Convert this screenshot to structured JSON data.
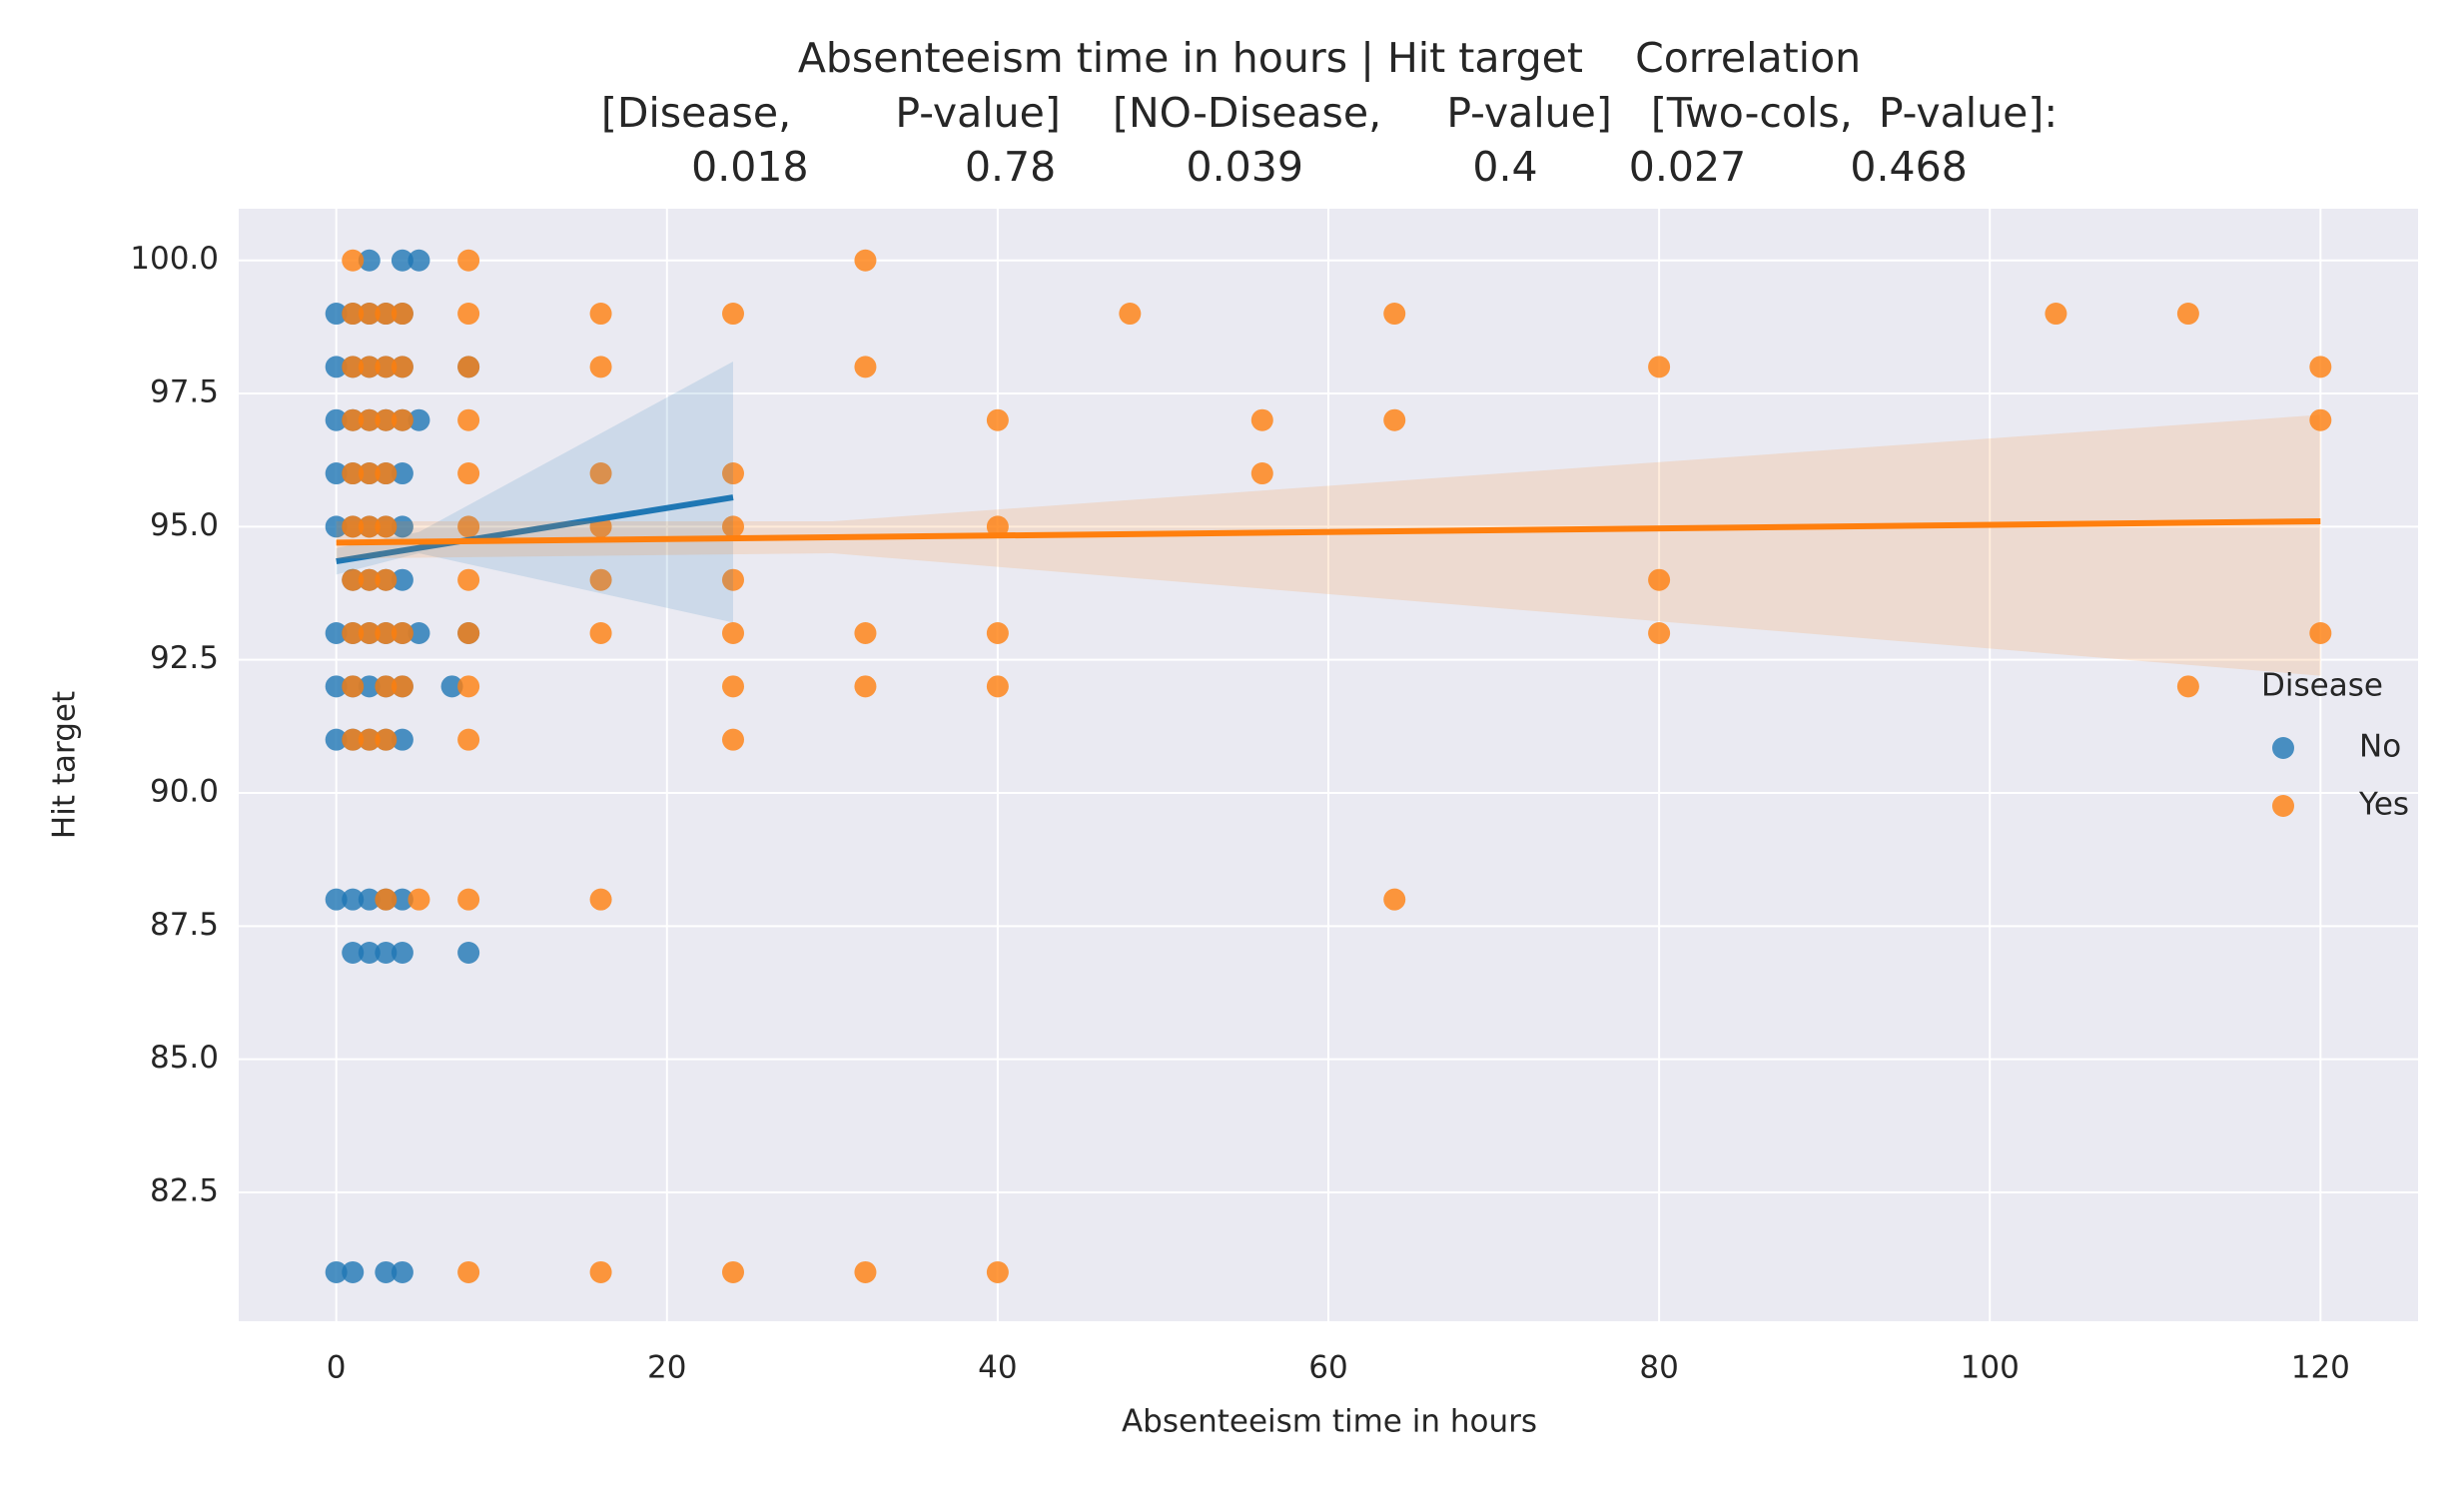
{
  "chart_data": {
    "type": "scatter",
    "title": [
      "Absenteeism time in hours | Hit target    Correlation",
      "[Disease,        P-value]    [NO-Disease,     P-value]   [Two-cols,  P-value]:",
      "0.018            0.78          0.039             0.4       0.027        0.468"
    ],
    "xlabel": "Absenteeism time in hours",
    "ylabel": "Hit target",
    "xlim": [
      -5.9,
      125.9
    ],
    "xticks": [
      0,
      20,
      40,
      60,
      80,
      100,
      120
    ],
    "ylim": [
      80.08,
      100.97
    ],
    "yticks": [
      82.5,
      {
        "value": 85,
        "label": "85.0"
      },
      87.5,
      {
        "value": 90,
        "label": "90.0"
      },
      92.5,
      {
        "value": 95,
        "label": "95.0"
      },
      97.5,
      {
        "value": 100,
        "label": "100.0"
      }
    ],
    "grid": true,
    "legend_title": "Disease",
    "legend": "right",
    "series": [
      {
        "name": "No",
        "color": "#1f77b4",
        "x": [
          2,
          4,
          5,
          0,
          1,
          2,
          3,
          4,
          0,
          1,
          2,
          3,
          4,
          8,
          0,
          1,
          2,
          3,
          4,
          5,
          0,
          1,
          2,
          3,
          4,
          0,
          1,
          2,
          3,
          4,
          1,
          2,
          3,
          4,
          0,
          1,
          2,
          3,
          4,
          5,
          8,
          0,
          1,
          2,
          3,
          4,
          7,
          0,
          1,
          2,
          3,
          4,
          0,
          1,
          2,
          3,
          4,
          1,
          2,
          3,
          4,
          8,
          0,
          1,
          3,
          4
        ],
        "values": [
          100,
          100,
          100,
          99,
          99,
          99,
          99,
          99,
          98,
          98,
          98,
          98,
          98,
          98,
          97,
          97,
          97,
          97,
          97,
          97,
          96,
          96,
          96,
          96,
          96,
          95,
          95,
          95,
          95,
          95,
          94,
          94,
          94,
          94,
          93,
          93,
          93,
          93,
          93,
          93,
          93,
          92,
          92,
          92,
          92,
          92,
          92,
          91,
          91,
          91,
          91,
          91,
          88,
          88,
          88,
          88,
          88,
          87,
          87,
          87,
          87,
          87,
          81,
          81,
          81,
          81
        ],
        "fit": {
          "x": [
            0,
            24
          ],
          "y": [
            94.35,
            95.55
          ]
        },
        "band": {
          "x": [
            0,
            5,
            24
          ],
          "lower": [
            94.1,
            94.5,
            93.2
          ],
          "upper": [
            94.6,
            94.9,
            98.1
          ]
        }
      },
      {
        "name": "Yes",
        "color": "#ff7f0e",
        "x": [
          1,
          8,
          32,
          1,
          2,
          3,
          4,
          8,
          16,
          24,
          48,
          64,
          104,
          112,
          1,
          2,
          3,
          4,
          8,
          16,
          32,
          80,
          120,
          1,
          2,
          3,
          4,
          8,
          40,
          56,
          64,
          120,
          1,
          2,
          3,
          8,
          16,
          24,
          56,
          1,
          2,
          3,
          8,
          16,
          24,
          40,
          1,
          2,
          3,
          8,
          16,
          24,
          80,
          1,
          2,
          3,
          4,
          8,
          16,
          24,
          32,
          40,
          80,
          120,
          1,
          3,
          4,
          8,
          24,
          32,
          40,
          112,
          1,
          2,
          3,
          8,
          24,
          3,
          5,
          8,
          16,
          64,
          8,
          16,
          24,
          32,
          40
        ],
        "values": [
          100,
          100,
          100,
          99,
          99,
          99,
          99,
          99,
          99,
          99,
          99,
          99,
          99,
          99,
          98,
          98,
          98,
          98,
          98,
          98,
          98,
          98,
          98,
          97,
          97,
          97,
          97,
          97,
          97,
          97,
          97,
          97,
          96,
          96,
          96,
          96,
          96,
          96,
          96,
          95,
          95,
          95,
          95,
          95,
          95,
          95,
          94,
          94,
          94,
          94,
          94,
          94,
          94,
          93,
          93,
          93,
          93,
          93,
          93,
          93,
          93,
          93,
          93,
          93,
          92,
          92,
          92,
          92,
          92,
          92,
          92,
          92,
          91,
          91,
          91,
          91,
          91,
          88,
          88,
          88,
          88,
          88,
          81,
          81,
          81,
          81,
          81
        ],
        "fit": {
          "x": [
            0,
            120
          ],
          "y": [
            94.7,
            95.1
          ]
        },
        "band": {
          "x": [
            0,
            30,
            120
          ],
          "lower": [
            94.4,
            94.5,
            92.2
          ],
          "upper": [
            95.1,
            95.1,
            97.1
          ]
        }
      }
    ]
  }
}
